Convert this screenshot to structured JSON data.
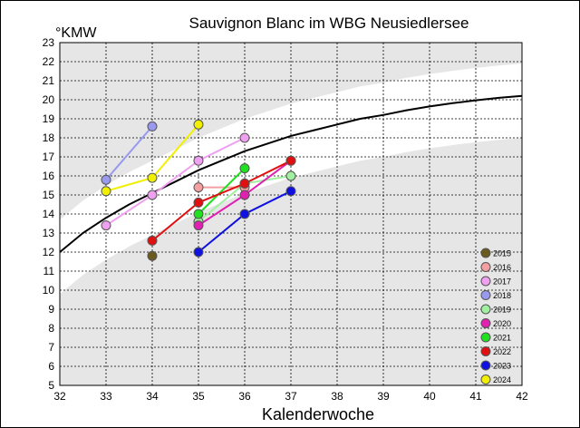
{
  "chart_data": {
    "type": "line",
    "title": "Sauvignon Blanc im WBG Neusiedlersee",
    "ylabel": "°KMW",
    "xlabel": "Kalenderwoche",
    "xlim": [
      32,
      42
    ],
    "ylim": [
      5,
      23
    ],
    "x_ticks": [
      "32",
      "33",
      "34",
      "35",
      "36",
      "37",
      "38",
      "39",
      "40",
      "41",
      "42"
    ],
    "y_ticks": [
      "5",
      "6",
      "7",
      "8",
      "9",
      "10",
      "11",
      "12",
      "13",
      "14",
      "15",
      "16",
      "17",
      "18",
      "19",
      "20",
      "21",
      "22",
      "23"
    ],
    "grid": true,
    "legend_position": "bottom-right",
    "reference_curve": {
      "x": [
        32,
        32.5,
        33,
        33.5,
        34,
        34.5,
        35,
        35.5,
        36,
        36.5,
        37,
        37.5,
        38,
        38.5,
        39,
        39.5,
        40,
        40.5,
        41,
        41.5,
        42
      ],
      "y": [
        12.0,
        13.0,
        13.8,
        14.5,
        15.1,
        15.7,
        16.3,
        16.8,
        17.3,
        17.7,
        18.1,
        18.4,
        18.7,
        19.0,
        19.2,
        19.45,
        19.65,
        19.82,
        19.97,
        20.1,
        20.2
      ]
    },
    "series": [
      {
        "name": "2015",
        "color": "#6b5a1e",
        "x": [
          34
        ],
        "y": [
          11.8
        ]
      },
      {
        "name": "2016",
        "color": "#f4a0a0",
        "x": [
          35,
          36
        ],
        "y": [
          15.4,
          15.4
        ]
      },
      {
        "name": "2017",
        "color": "#f0a0f0",
        "x": [
          33,
          34,
          35,
          36
        ],
        "y": [
          13.4,
          15.0,
          16.8,
          18.0
        ]
      },
      {
        "name": "2018",
        "color": "#9999f0",
        "x": [
          33,
          34
        ],
        "y": [
          15.8,
          18.6
        ]
      },
      {
        "name": "2019",
        "color": "#a0f0a0",
        "x": [
          35,
          36,
          37
        ],
        "y": [
          13.6,
          15.6,
          16.0
        ]
      },
      {
        "name": "2020",
        "color": "#e020b0",
        "x": [
          35,
          36,
          37
        ],
        "y": [
          13.4,
          15.0,
          16.8
        ]
      },
      {
        "name": "2021",
        "color": "#20e020",
        "x": [
          35,
          36
        ],
        "y": [
          14.0,
          16.4
        ]
      },
      {
        "name": "2022",
        "color": "#e01010",
        "x": [
          34,
          35,
          36,
          37
        ],
        "y": [
          12.6,
          14.6,
          15.6,
          16.8
        ]
      },
      {
        "name": "2023",
        "color": "#1010e0",
        "x": [
          35,
          36,
          37
        ],
        "y": [
          12.0,
          14.0,
          15.2
        ]
      },
      {
        "name": "2024",
        "color": "#f0f000",
        "x": [
          33,
          34,
          35
        ],
        "y": [
          15.2,
          15.9,
          18.7
        ]
      }
    ]
  }
}
